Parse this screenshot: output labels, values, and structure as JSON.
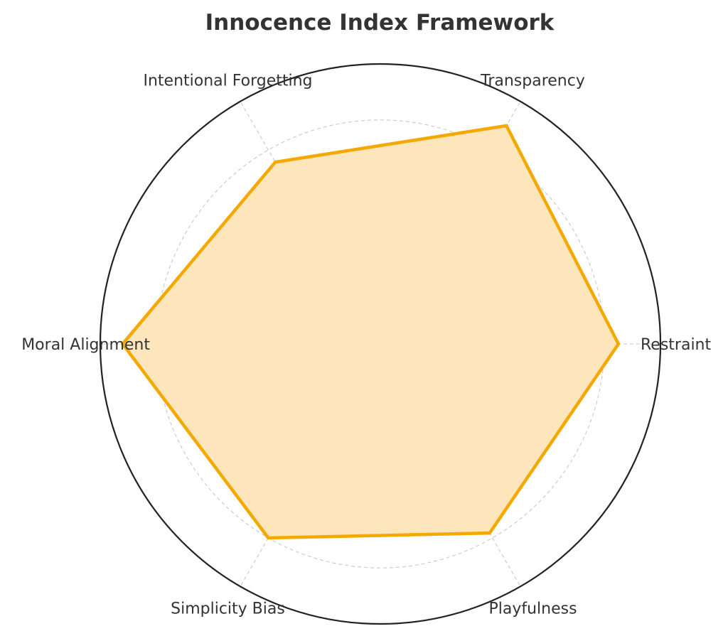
{
  "chart_data": {
    "type": "radar",
    "title": "Innocence Index Framework",
    "categories": [
      "Restraint",
      "Transparency",
      "Intentional Forgetting",
      "Moral Alignment",
      "Simplicity Bias",
      "Playfulness"
    ],
    "series": [
      {
        "values": [
          0.85,
          0.9,
          0.75,
          0.92,
          0.8,
          0.78
        ]
      }
    ],
    "rlim": [
      0,
      1
    ],
    "rticks": [
      0.2,
      0.4,
      0.6,
      0.8,
      1.0
    ],
    "tick_labels_shown": false,
    "grid": true,
    "legend": "none",
    "colors": {
      "line": "#f5a800",
      "fill": "#fde6bc",
      "grid": "#c8c8c8",
      "frame": "#222222"
    }
  }
}
